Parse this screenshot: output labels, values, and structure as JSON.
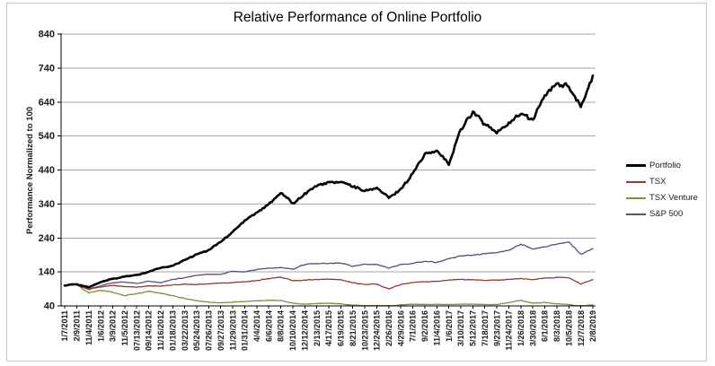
{
  "window": {
    "background": "#ffffff",
    "border_color": "#c6c6c6"
  },
  "chart_data": {
    "type": "line",
    "title": "Relative Performance of Online Portfolio",
    "ylabel": "Performance Normalized to 100",
    "xlabel": "",
    "ylim": [
      40,
      840
    ],
    "yticks": [
      840,
      740,
      640,
      540,
      440,
      340,
      240,
      140,
      40
    ],
    "grid": true,
    "gridline_color": "#a6a6a6",
    "axis_color": "#000000",
    "legend_position": "right",
    "categories": [
      "1/7/2011",
      "2/9/2011",
      "11/4/2011",
      "1/6/2012",
      "3/9/2012",
      "11/5/2012",
      "07/13/2012",
      "09/14/2012",
      "11/16/2012",
      "01/18/2013",
      "03/22/2013",
      "05/24/2013",
      "07/26/2013",
      "09/27/2013",
      "11/29/2013",
      "01/31/2014",
      "4/4/2014",
      "6/6/2014",
      "8/8/2014",
      "10/10/2014",
      "12/12/2014",
      "2/13/2015",
      "4/17/2015",
      "6/19/2015",
      "8/21/2015",
      "10/23/2015",
      "12/24/2015",
      "2/26/2016",
      "4/29/2016",
      "7/1/2016",
      "9/2/2016",
      "11/4/2016",
      "1/6/2017",
      "3/10/2017",
      "5/12/2017",
      "7/18/2017",
      "9/23/2017",
      "11/24/2017",
      "1/26/2018",
      "3/30/2018",
      "6/1/2018",
      "8/3/2018",
      "10/5/2018",
      "12/7/2018",
      "2/8/2019"
    ],
    "series": [
      {
        "name": "Portfolio",
        "color": "#000000",
        "width": 2.6,
        "values": [
          100,
          104,
          95,
          110,
          120,
          126,
          131,
          140,
          152,
          158,
          175,
          192,
          205,
          228,
          258,
          292,
          315,
          340,
          372,
          342,
          372,
          392,
          405,
          405,
          390,
          378,
          388,
          358,
          385,
          430,
          488,
          497,
          455,
          560,
          612,
          575,
          548,
          580,
          605,
          588,
          660,
          695,
          685,
          625,
          718
        ]
      },
      {
        "name": "TSX",
        "color": "#953735",
        "width": 1.3,
        "values": [
          100,
          103,
          88,
          96,
          100,
          97,
          95,
          99,
          98,
          102,
          104,
          103,
          105,
          107,
          109,
          111,
          115,
          120,
          125,
          114,
          116,
          118,
          119,
          117,
          108,
          103,
          104,
          90,
          103,
          109,
          111,
          112,
          116,
          118,
          117,
          115,
          116,
          118,
          121,
          117,
          122,
          124,
          123,
          104,
          117
        ]
      },
      {
        "name": "TSX Venture",
        "color": "#76923C",
        "width": 1.3,
        "values": [
          100,
          103,
          78,
          86,
          80,
          70,
          76,
          83,
          77,
          70,
          62,
          55,
          51,
          49,
          51,
          53,
          55,
          56,
          56,
          48,
          45,
          47,
          48,
          46,
          42,
          41,
          41,
          38,
          43,
          45,
          44,
          45,
          44,
          45,
          45,
          44,
          44,
          50,
          56,
          48,
          50,
          46,
          44,
          40,
          43
        ]
      },
      {
        "name": "S&P 500",
        "color": "#60497B",
        "width": 1.3,
        "values": [
          100,
          103,
          90,
          99,
          108,
          110,
          106,
          113,
          108,
          118,
          123,
          130,
          133,
          133,
          142,
          140,
          147,
          151,
          153,
          148,
          162,
          165,
          165,
          166,
          156,
          163,
          162,
          151,
          162,
          165,
          171,
          168,
          179,
          187,
          189,
          194,
          197,
          204,
          222,
          207,
          214,
          222,
          228,
          192,
          208
        ]
      }
    ]
  }
}
